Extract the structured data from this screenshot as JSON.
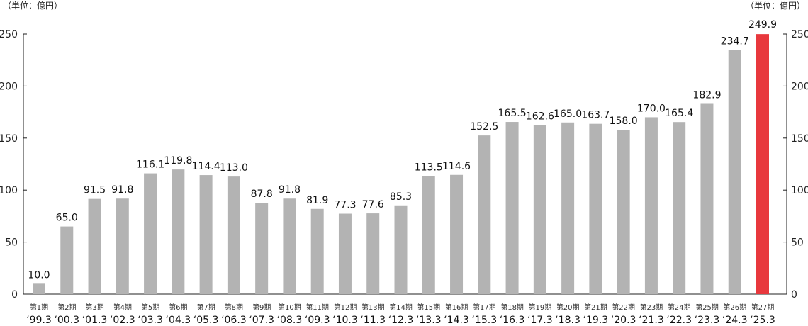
{
  "chart_data": {
    "type": "bar",
    "unit_left": "（単位：億円）",
    "unit_right": "（単位：億円）",
    "ylim": [
      0,
      250
    ],
    "yticks": [
      0,
      50,
      100,
      150,
      200,
      250
    ],
    "grid": false,
    "colors": {
      "bar": "#b3b3b3",
      "highlight": "#e8383d",
      "axis": "#222222"
    },
    "highlight_index": 26,
    "periods": [
      "第1期",
      "第2期",
      "第3期",
      "第4期",
      "第5期",
      "第6期",
      "第7期",
      "第8期",
      "第9期",
      "第10期",
      "第11期",
      "第12期",
      "第13期",
      "第14期",
      "第15期",
      "第16期",
      "第17期",
      "第18期",
      "第19期",
      "第20期",
      "第21期",
      "第22期",
      "第23期",
      "第24期",
      "第25期",
      "第26期",
      "第27期"
    ],
    "categories": [
      "‘99.3",
      "‘00.3",
      "‘01.3",
      "‘02.3",
      "‘03.3",
      "‘04.3",
      "‘05.3",
      "‘06.3",
      "‘07.3",
      "‘08.3",
      "‘09.3",
      "‘10.3",
      "‘11.3",
      "‘12.3",
      "‘13.3",
      "‘14.3",
      "‘15.3",
      "‘16.3",
      "‘17.3",
      "‘18.3",
      "‘19.3",
      "‘20.3",
      "‘21.3",
      "‘22.3",
      "‘23.3",
      "‘24.3",
      "‘25.3"
    ],
    "values": [
      10.0,
      65.0,
      91.5,
      91.8,
      116.1,
      119.8,
      114.4,
      113.0,
      87.8,
      91.8,
      81.9,
      77.3,
      77.6,
      85.3,
      113.5,
      114.6,
      152.5,
      165.5,
      162.6,
      165.0,
      163.7,
      158.0,
      170.0,
      165.4,
      182.9,
      234.7,
      249.9
    ],
    "value_labels": [
      "10.0",
      "65.0",
      "91.5",
      "91.8",
      "116.1",
      "119.8",
      "114.4",
      "113.0",
      "87.8",
      "91.8",
      "81.9",
      "77.3",
      "77.6",
      "85.3",
      "113.5",
      "114.6",
      "152.5",
      "165.5",
      "162.6",
      "165.0",
      "163.7",
      "158.0",
      "170.0",
      "165.4",
      "182.9",
      "234.7",
      "249.9"
    ]
  }
}
